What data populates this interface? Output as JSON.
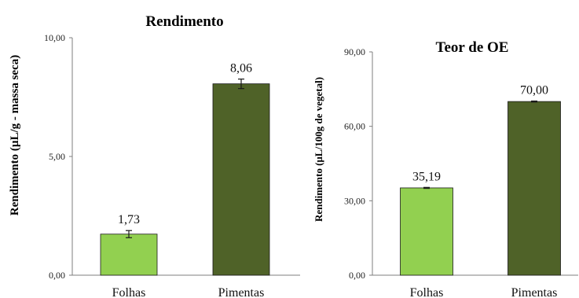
{
  "chart_data": [
    {
      "type": "bar",
      "title": "Rendimento",
      "ylabel": "Rendimento (µL/g - massa seca)",
      "xlabel": "",
      "categories": [
        "Folhas",
        "Pimentas"
      ],
      "values": [
        1.73,
        8.06
      ],
      "value_labels": [
        "1,73",
        "8,06"
      ],
      "error": [
        0.15,
        0.2
      ],
      "ylim": [
        0,
        10
      ],
      "yticks": [
        0,
        5,
        10
      ],
      "ytick_labels": [
        "0,00",
        "5,00",
        "10,00"
      ],
      "colors": [
        "#92d050",
        "#4f6228"
      ],
      "grid": false,
      "legend": "none"
    },
    {
      "type": "bar",
      "title": "Teor de OE",
      "ylabel": "Rendimento (µL/100g de vegetal)",
      "xlabel": "",
      "categories": [
        "Folhas",
        "Pimentas"
      ],
      "values": [
        35.19,
        70.0
      ],
      "value_labels": [
        "35,19",
        "70,00"
      ],
      "error": [
        0.2,
        0.2
      ],
      "ylim": [
        0,
        90
      ],
      "yticks": [
        0,
        30,
        60,
        90
      ],
      "ytick_labels": [
        "0,00",
        "30,00",
        "60,00",
        "90,00"
      ],
      "colors": [
        "#92d050",
        "#4f6228"
      ],
      "grid": false,
      "legend": "none"
    }
  ]
}
